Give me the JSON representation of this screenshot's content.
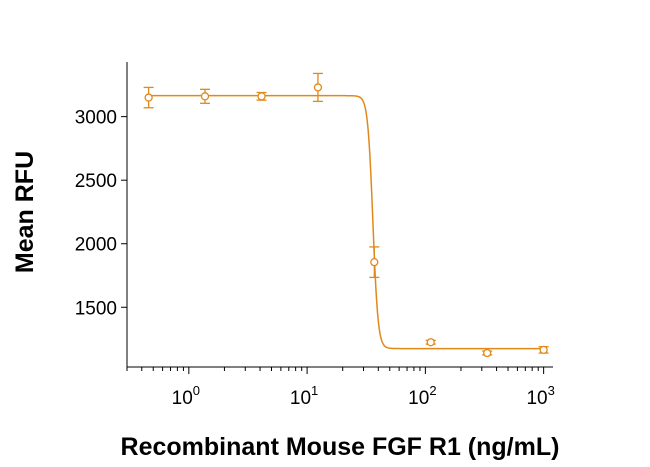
{
  "chart_data": {
    "type": "scatter",
    "title": "",
    "xlabel": "Recombinant Mouse FGF R1 (ng/mL)",
    "ylabel": "Mean RFU",
    "x_scale": "log",
    "xlim": [
      0.3,
      1200
    ],
    "ylim": [
      1030,
      3430
    ],
    "x_ticks": [
      {
        "value": 1,
        "base": "10",
        "exp": "0"
      },
      {
        "value": 10,
        "base": "10",
        "exp": "1"
      },
      {
        "value": 100,
        "base": "10",
        "exp": "2"
      },
      {
        "value": 1000,
        "base": "10",
        "exp": "3"
      }
    ],
    "y_ticks": [
      1500,
      2000,
      2500,
      3000
    ],
    "grid": false,
    "legend": "none",
    "color": "#E0891A",
    "series": [
      {
        "points": [
          {
            "x": 0.457,
            "y": 3150,
            "err": 80
          },
          {
            "x": 1.37,
            "y": 3160,
            "err": 55
          },
          {
            "x": 4.12,
            "y": 3160,
            "err": 30
          },
          {
            "x": 12.35,
            "y": 3230,
            "err": 110
          },
          {
            "x": 37.0,
            "y": 1855,
            "err": 120
          },
          {
            "x": 111,
            "y": 1225,
            "err": 15
          },
          {
            "x": 333,
            "y": 1140,
            "err": 15
          },
          {
            "x": 1000,
            "y": 1165,
            "err": 25
          }
        ],
        "fit": {
          "top": 3165,
          "bottom": 1175,
          "ec50": 36,
          "hill": 20
        }
      }
    ]
  }
}
